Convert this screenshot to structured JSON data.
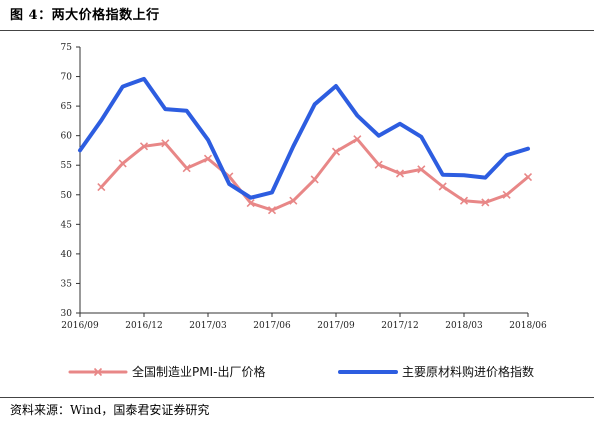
{
  "figure": {
    "title": "图 4：两大价格指数上行",
    "source": "资料来源：Wind，国泰君安证券研究"
  },
  "chart_data": {
    "type": "line",
    "title": "",
    "xlabel": "",
    "ylabel": "",
    "ylim": [
      30,
      75
    ],
    "yticks": [
      30,
      35,
      40,
      45,
      50,
      55,
      60,
      65,
      70,
      75
    ],
    "x": [
      "2016/09",
      "2016/10",
      "2016/11",
      "2016/12",
      "2017/01",
      "2017/02",
      "2017/03",
      "2017/04",
      "2017/05",
      "2017/06",
      "2017/07",
      "2017/08",
      "2017/09",
      "2017/10",
      "2017/11",
      "2017/12",
      "2018/01",
      "2018/02",
      "2018/03",
      "2018/04",
      "2018/05",
      "2018/06"
    ],
    "xtick_labels": [
      "2016/09",
      "2016/12",
      "2017/03",
      "2017/06",
      "2017/09",
      "2017/12",
      "2018/03",
      "2018/06"
    ],
    "grid": false,
    "legend_position": "bottom",
    "series": [
      {
        "name": "全国制造业PMI-出厂价格",
        "color": "#e88787",
        "marker": "x",
        "values": [
          null,
          51.3,
          55.3,
          58.2,
          58.7,
          54.5,
          56.1,
          53.1,
          48.6,
          47.4,
          49.0,
          52.6,
          57.3,
          59.4,
          55.1,
          53.6,
          54.3,
          51.4,
          49.0,
          48.7,
          50.0,
          53.0
        ]
      },
      {
        "name": "主要原材料购进价格指数",
        "color": "#2d5de0",
        "marker": "none",
        "values": [
          57.5,
          62.6,
          68.3,
          69.6,
          64.5,
          64.2,
          59.3,
          51.8,
          49.5,
          50.4,
          58.2,
          65.3,
          68.4,
          63.4,
          60.0,
          62.0,
          59.8,
          53.4,
          53.3,
          52.9,
          56.7,
          57.8
        ]
      }
    ]
  }
}
